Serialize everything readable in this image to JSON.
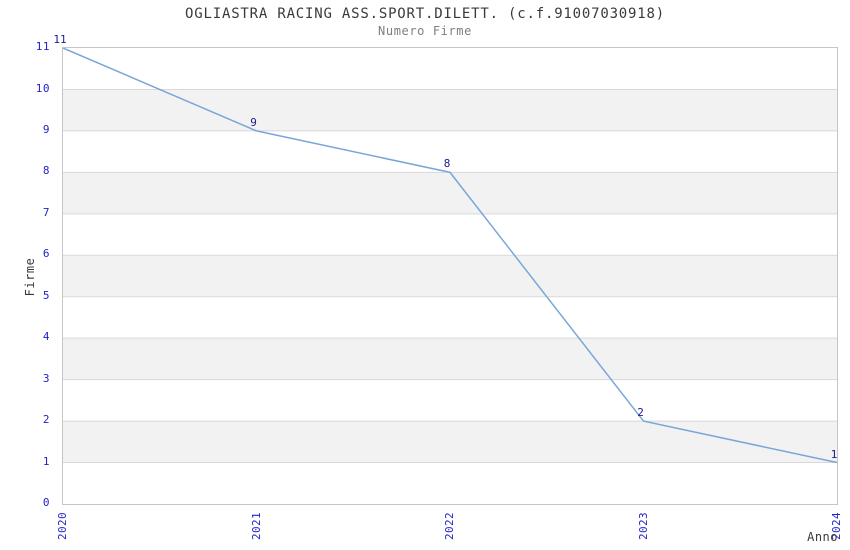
{
  "header": {
    "title": "OGLIASTRA RACING ASS.SPORT.DILETT. (c.f.91007030918)",
    "subtitle": "Numero Firme"
  },
  "chart_data": {
    "type": "line",
    "title": "OGLIASTRA RACING ASS.SPORT.DILETT. (c.f.91007030918)",
    "subtitle": "Numero Firme",
    "xlabel": "Anno",
    "ylabel": "Firme",
    "categories": [
      "2020",
      "2021",
      "2022",
      "2023",
      "2024"
    ],
    "values": [
      11,
      9,
      8,
      2,
      1
    ],
    "ylim": [
      0,
      11
    ],
    "yticks": [
      0,
      1,
      2,
      3,
      4,
      5,
      6,
      7,
      8,
      9,
      10,
      11
    ],
    "grid": true,
    "legend": "none",
    "colors": {
      "line": "#79a6d9",
      "tick_label": "#2222cc",
      "data_label": "#1a1a8c",
      "band": "#f2f2f2",
      "grid_line": "#d9d9d9",
      "border": "#c6c6c6"
    }
  }
}
